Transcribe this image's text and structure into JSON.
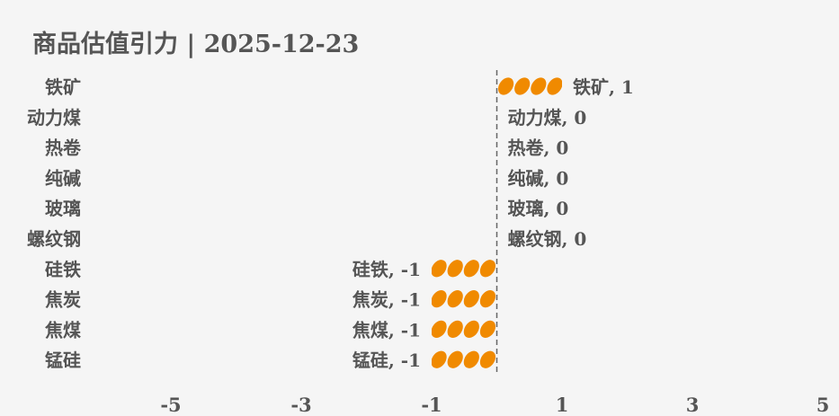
{
  "chart_data": {
    "type": "bar",
    "orientation": "horizontal",
    "style": "pictorial",
    "title": "商品估值引力 | 2025-12-23",
    "categories": [
      "铁矿",
      "动力煤",
      "热卷",
      "纯碱",
      "玻璃",
      "螺纹钢",
      "硅铁",
      "焦炭",
      "焦煤",
      "锰硅"
    ],
    "values": [
      1,
      0,
      0,
      0,
      0,
      0,
      -1,
      -1,
      -1,
      -1
    ],
    "data_labels": [
      "铁矿, 1",
      "动力煤, 0",
      "热卷, 0",
      "纯碱, 0",
      "玻璃, 0",
      "螺纹钢, 0",
      "硅铁, -1",
      "焦炭, -1",
      "焦煤, -1",
      "锰硅, -1"
    ],
    "xticks": [
      -5,
      -3,
      -1,
      1,
      3,
      5
    ],
    "xtick_labels": [
      "-5",
      "-3",
      "-1",
      "1",
      "3",
      "5"
    ],
    "xlim": [
      -6,
      5
    ],
    "grid": false,
    "zero_line": "dashed",
    "colors": {
      "bar": "#f08a00",
      "text": "#555555",
      "background": "#f5f5f5",
      "zero_line": "#666666"
    }
  }
}
